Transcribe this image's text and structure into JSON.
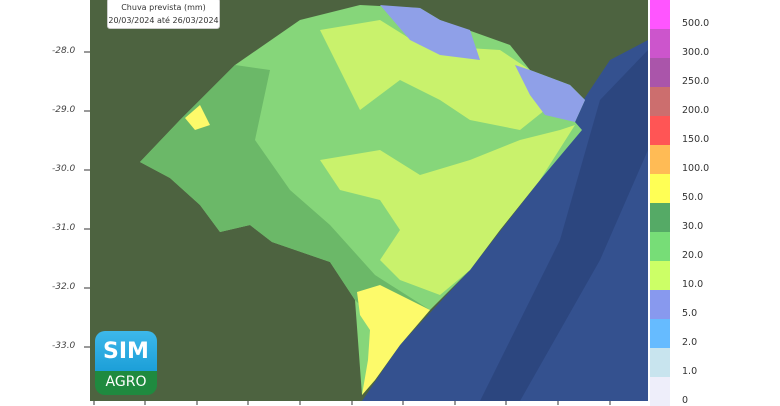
{
  "legend": {
    "title": "Chuva prevista (mm)",
    "period": "20/03/2024 até 26/03/2024"
  },
  "y_axis_ticks": [
    "-28.0",
    "-29.0",
    "-30.0",
    "-31.0",
    "-32.0",
    "-33.0"
  ],
  "colorbar": {
    "labels": [
      "500.0",
      "300.0",
      "250.0",
      "200.0",
      "150.0",
      "100.0",
      "50.0",
      "30.0",
      "20.0",
      "10.0",
      "5.0",
      "2.0",
      "1.0",
      "0"
    ],
    "colors": [
      "#ff55ff",
      "#cc55cc",
      "#aa55aa",
      "#cc6e6e",
      "#ff5555",
      "#ffbb55",
      "#ffff55",
      "#55aa66",
      "#77dd77",
      "#ccff66",
      "#8899ee",
      "#66bbff",
      "#c8e4ee",
      "#eeeefa"
    ]
  },
  "colors": {
    "sea": "#34518f",
    "land": "#4d6340",
    "lime": "#c9f26c",
    "green": "#86d67a",
    "dark_green": "#6bb868",
    "yellow": "#fdfa6a",
    "blue": "#8fa0e8"
  },
  "logo": {
    "line1": "SIM",
    "line2": "AGRO"
  }
}
